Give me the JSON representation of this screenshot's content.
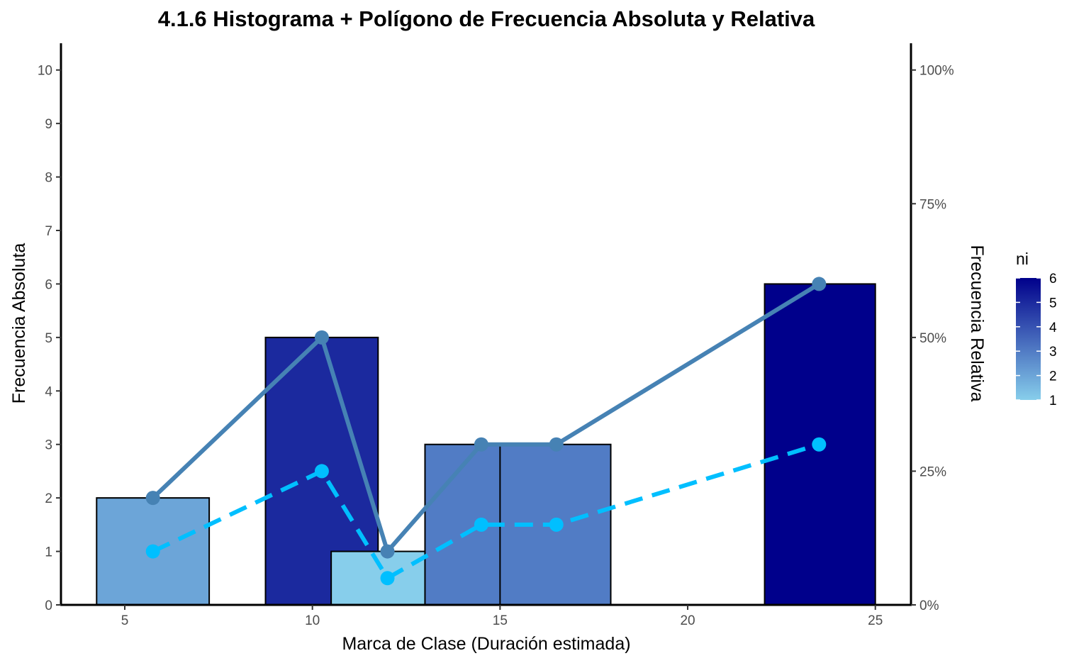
{
  "chart_data": {
    "type": "bar",
    "title": "4.1.6 Histograma + Polígono de Frecuencia Absoluta y Relativa",
    "xlabel": "Marca de Clase (Duración estimada)",
    "ylabel": "Frecuencia Absoluta",
    "y2label": "Frecuencia Relativa",
    "xlim": [
      3.3,
      25.95
    ],
    "ylim": [
      0,
      10.5
    ],
    "y2lim": [
      0,
      1.05
    ],
    "x_ticks": [
      5,
      10,
      15,
      20,
      25
    ],
    "y_ticks": [
      0,
      1,
      2,
      3,
      4,
      5,
      6,
      7,
      8,
      9,
      10
    ],
    "y2_ticks": [
      0,
      0.25,
      0.5,
      0.75,
      1.0
    ],
    "y2_tick_labels": [
      "0%",
      "25%",
      "50%",
      "75%",
      "100%"
    ],
    "bars": [
      {
        "x": 5.75,
        "xmin": 4.25,
        "xmax": 7.25,
        "ni": 2
      },
      {
        "x": 10.25,
        "xmin": 8.75,
        "xmax": 11.75,
        "ni": 5
      },
      {
        "x": 12.0,
        "xmin": 10.5,
        "xmax": 13.0,
        "ni": 1
      },
      {
        "x": 14.5,
        "xmin": 13.0,
        "xmax": 16.0,
        "ni": 3
      },
      {
        "x": 16.5,
        "xmin": 15.0,
        "xmax": 17.95,
        "ni": 3
      },
      {
        "x": 23.5,
        "xmin": 22.05,
        "xmax": 25.0,
        "ni": 6
      }
    ],
    "series": [
      {
        "key": "absolute",
        "axis": "left",
        "style": "solid",
        "color": "#4682b4",
        "x": [
          5.75,
          10.25,
          12.0,
          14.5,
          16.5,
          23.5
        ],
        "values": [
          2,
          5,
          1,
          3,
          3,
          6
        ]
      },
      {
        "key": "relative",
        "axis": "right",
        "style": "dashed",
        "color": "#00bfff",
        "x": [
          5.75,
          10.25,
          12.0,
          14.5,
          16.5,
          23.5
        ],
        "values": [
          0.1,
          0.25,
          0.05,
          0.15,
          0.15,
          0.3
        ]
      }
    ],
    "fill_scale": {
      "name": "ni",
      "low_color": "#87ceeb",
      "high_color": "#00008b",
      "min": 1,
      "max": 6,
      "breaks": [
        1,
        2,
        3,
        4,
        5,
        6
      ]
    },
    "legend_position": "right",
    "grid": false
  }
}
